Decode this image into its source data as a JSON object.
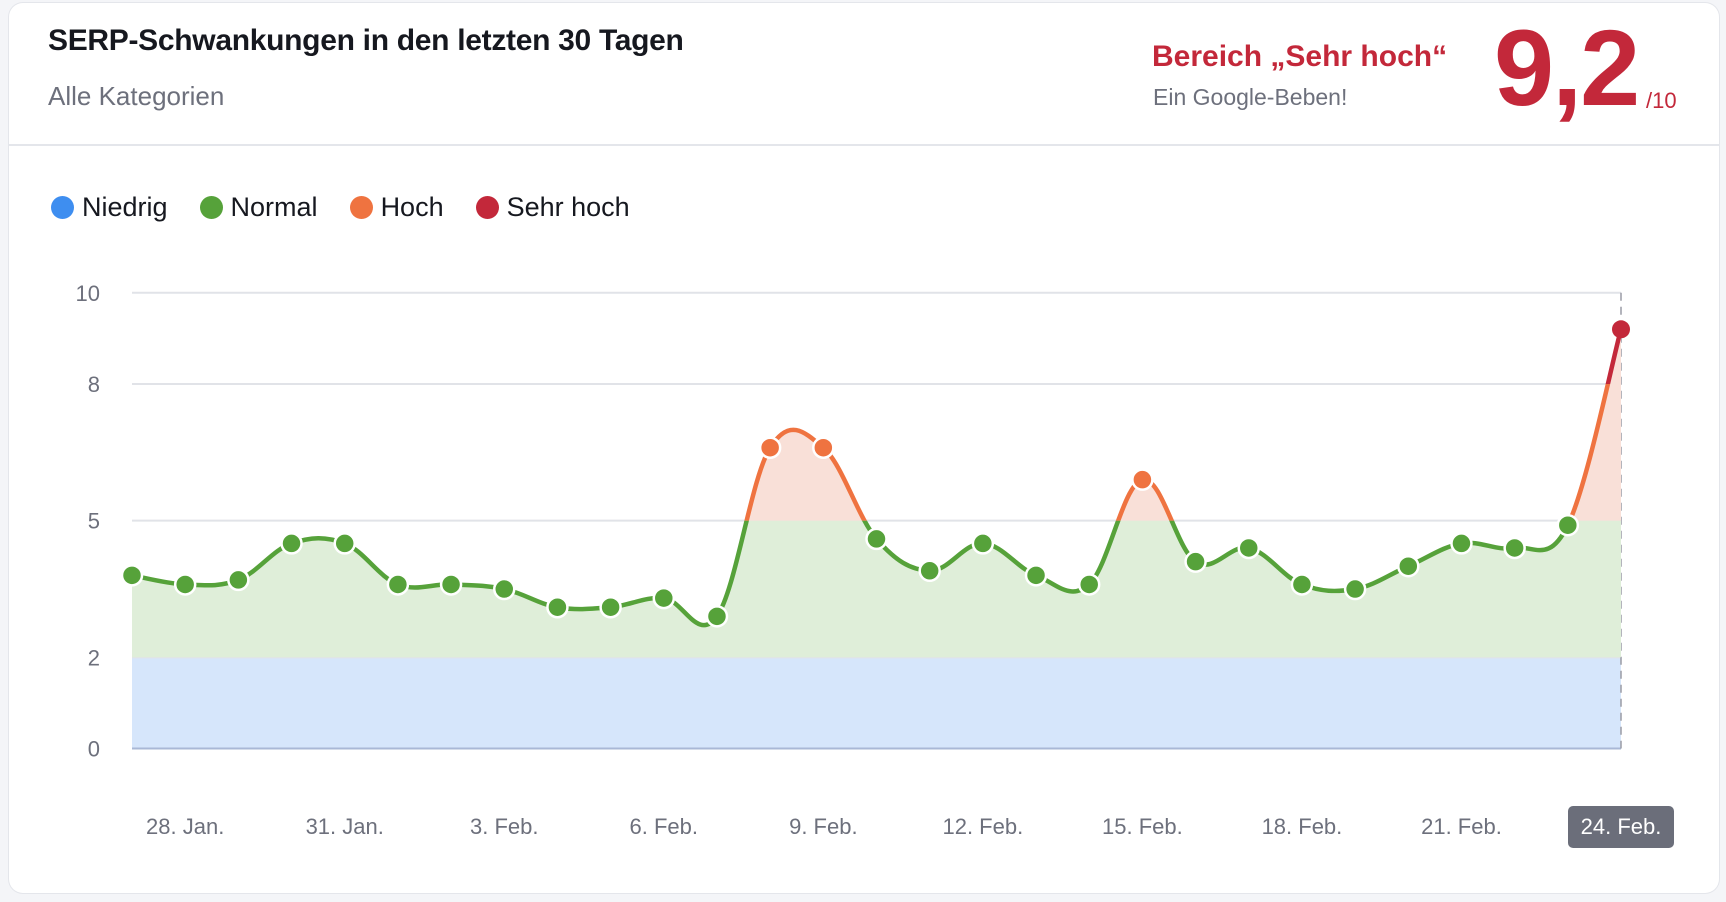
{
  "header": {
    "title": "SERP-Schwankungen in den letzten 30 Tagen",
    "subtitle": "Alle Kategorien",
    "range_label": "Bereich „Sehr hoch“",
    "range_description": "Ein Google-Beben!",
    "score": "9,2",
    "score_max": "/10"
  },
  "legend": [
    {
      "label": "Niedrig",
      "color": "#3e8ef0"
    },
    {
      "label": "Normal",
      "color": "#56a23a"
    },
    {
      "label": "Hoch",
      "color": "#ef7340"
    },
    {
      "label": "Sehr hoch",
      "color": "#c3283a"
    }
  ],
  "chart_data": {
    "type": "line",
    "title": "SERP-Schwankungen in den letzten 30 Tagen",
    "x": [
      "27. Jan.",
      "28. Jan.",
      "29. Jan.",
      "30. Jan.",
      "31. Jan.",
      "1. Feb.",
      "2. Feb.",
      "3. Feb.",
      "4. Feb.",
      "5. Feb.",
      "6. Feb.",
      "7. Feb.",
      "8. Feb.",
      "9. Feb.",
      "10. Feb.",
      "11. Feb.",
      "12. Feb.",
      "13. Feb.",
      "14. Feb.",
      "15. Feb.",
      "16. Feb.",
      "17. Feb.",
      "18. Feb.",
      "19. Feb.",
      "20. Feb.",
      "21. Feb.",
      "22. Feb.",
      "23. Feb.",
      "24. Feb."
    ],
    "values": [
      3.8,
      3.6,
      3.7,
      4.5,
      4.5,
      3.6,
      3.6,
      3.5,
      3.1,
      3.1,
      3.3,
      2.9,
      6.6,
      6.6,
      4.6,
      3.9,
      4.5,
      3.8,
      3.6,
      5.9,
      4.1,
      4.4,
      3.6,
      3.5,
      4.0,
      4.5,
      4.4,
      4.9,
      9.2
    ],
    "x_tick_labels": [
      "28. Jan.",
      "31. Jan.",
      "3. Feb.",
      "6. Feb.",
      "9. Feb.",
      "12. Feb.",
      "15. Feb.",
      "18. Feb.",
      "21. Feb.",
      "24. Feb."
    ],
    "highlighted_x": "24. Feb.",
    "y_ticks": [
      "0",
      "2",
      "5",
      "8",
      "10"
    ],
    "ylim": [
      0,
      10
    ],
    "bands": [
      {
        "name": "Niedrig",
        "from": 0,
        "to": 2,
        "color": "#3e8ef0",
        "fill": "#d6e6fb"
      },
      {
        "name": "Normal",
        "from": 2,
        "to": 5,
        "color": "#56a23a",
        "fill": "#dfeed9"
      },
      {
        "name": "Hoch",
        "from": 5,
        "to": 8,
        "color": "#ef7340",
        "fill": "#f9e0d8"
      },
      {
        "name": "Sehr hoch",
        "from": 8,
        "to": 10,
        "color": "#c3283a",
        "fill": "#f9e0d8"
      }
    ],
    "grid": true,
    "legend_position": "top-left"
  }
}
